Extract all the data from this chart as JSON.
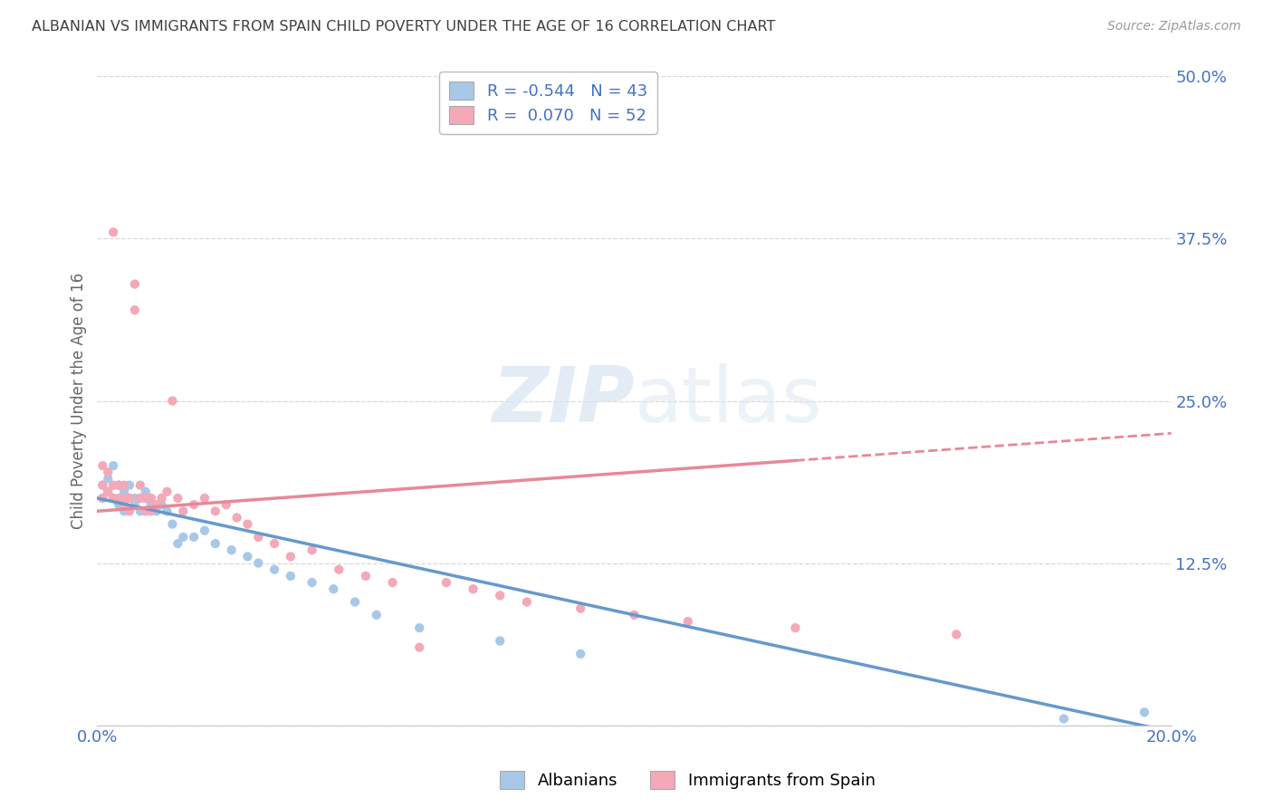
{
  "title": "ALBANIAN VS IMMIGRANTS FROM SPAIN CHILD POVERTY UNDER THE AGE OF 16 CORRELATION CHART",
  "source": "Source: ZipAtlas.com",
  "ylabel": "Child Poverty Under the Age of 16",
  "xlabel_albanians": "Albanians",
  "xlabel_spain": "Immigrants from Spain",
  "xmin": 0.0,
  "xmax": 0.2,
  "ymin": 0.0,
  "ymax": 0.5,
  "yticks": [
    0.0,
    0.125,
    0.25,
    0.375,
    0.5
  ],
  "ytick_labels": [
    "",
    "12.5%",
    "25.0%",
    "37.5%",
    "50.0%"
  ],
  "xticks": [
    0.0,
    0.05,
    0.1,
    0.15,
    0.2
  ],
  "xtick_labels": [
    "0.0%",
    "",
    "",
    "",
    "20.0%"
  ],
  "r_albanian": -0.544,
  "n_albanian": 43,
  "r_spain": 0.07,
  "n_spain": 52,
  "color_albanian": "#a8c8e8",
  "color_spain": "#f4a8b8",
  "color_albanian_line": "#6699cc",
  "color_spain_line": "#e88898",
  "color_tick": "#4472c4",
  "color_title": "#404040",
  "watermark_color": "#d8e4f0",
  "background_color": "#ffffff",
  "albanian_x": [
    0.001,
    0.001,
    0.002,
    0.002,
    0.003,
    0.003,
    0.004,
    0.004,
    0.005,
    0.005,
    0.006,
    0.006,
    0.007,
    0.007,
    0.008,
    0.008,
    0.009,
    0.009,
    0.01,
    0.01,
    0.011,
    0.012,
    0.013,
    0.014,
    0.015,
    0.016,
    0.018,
    0.02,
    0.022,
    0.025,
    0.028,
    0.03,
    0.033,
    0.036,
    0.04,
    0.044,
    0.048,
    0.052,
    0.06,
    0.075,
    0.09,
    0.18,
    0.195
  ],
  "albanian_y": [
    0.175,
    0.185,
    0.18,
    0.19,
    0.175,
    0.2,
    0.17,
    0.185,
    0.165,
    0.18,
    0.175,
    0.185,
    0.17,
    0.175,
    0.165,
    0.175,
    0.175,
    0.18,
    0.17,
    0.175,
    0.165,
    0.17,
    0.165,
    0.155,
    0.14,
    0.145,
    0.145,
    0.15,
    0.14,
    0.135,
    0.13,
    0.125,
    0.12,
    0.115,
    0.11,
    0.105,
    0.095,
    0.085,
    0.075,
    0.065,
    0.055,
    0.005,
    0.01
  ],
  "spain_x": [
    0.001,
    0.001,
    0.001,
    0.002,
    0.002,
    0.003,
    0.003,
    0.003,
    0.004,
    0.004,
    0.005,
    0.005,
    0.005,
    0.006,
    0.006,
    0.007,
    0.007,
    0.008,
    0.008,
    0.009,
    0.009,
    0.01,
    0.01,
    0.011,
    0.012,
    0.013,
    0.014,
    0.015,
    0.016,
    0.018,
    0.02,
    0.022,
    0.024,
    0.026,
    0.028,
    0.03,
    0.033,
    0.036,
    0.04,
    0.045,
    0.05,
    0.055,
    0.06,
    0.065,
    0.07,
    0.075,
    0.08,
    0.09,
    0.1,
    0.11,
    0.13,
    0.16
  ],
  "spain_y": [
    0.175,
    0.185,
    0.2,
    0.18,
    0.195,
    0.175,
    0.185,
    0.38,
    0.175,
    0.185,
    0.17,
    0.175,
    0.185,
    0.165,
    0.175,
    0.32,
    0.34,
    0.175,
    0.185,
    0.165,
    0.175,
    0.165,
    0.175,
    0.17,
    0.175,
    0.18,
    0.25,
    0.175,
    0.165,
    0.17,
    0.175,
    0.165,
    0.17,
    0.16,
    0.155,
    0.145,
    0.14,
    0.13,
    0.135,
    0.12,
    0.115,
    0.11,
    0.06,
    0.11,
    0.105,
    0.1,
    0.095,
    0.09,
    0.085,
    0.08,
    0.075,
    0.07
  ],
  "grid_color": "#d8d8d8",
  "spine_color": "#cccccc"
}
